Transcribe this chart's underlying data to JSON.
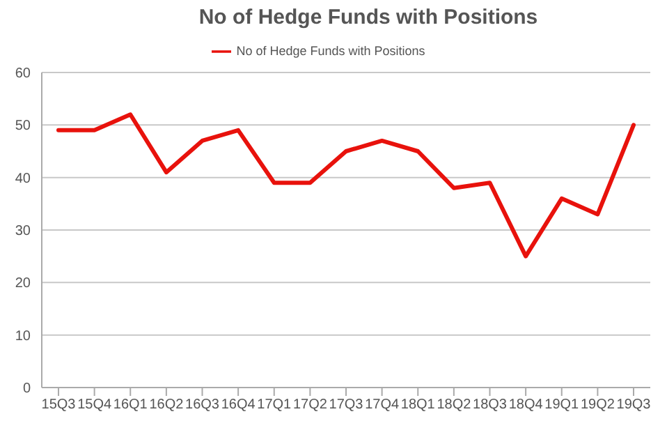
{
  "chart_data": {
    "type": "line",
    "title": "No of Hedge Funds with Positions",
    "categories": [
      "15Q3",
      "15Q4",
      "16Q1",
      "16Q2",
      "16Q3",
      "16Q4",
      "17Q1",
      "17Q2",
      "17Q3",
      "17Q4",
      "18Q1",
      "18Q2",
      "18Q3",
      "18Q4",
      "19Q1",
      "19Q2",
      "19Q3"
    ],
    "series": [
      {
        "name": "No of Hedge Funds with Positions",
        "color": "#e8120c",
        "values": [
          49,
          49,
          52,
          41,
          47,
          49,
          39,
          39,
          45,
          47,
          45,
          38,
          39,
          25,
          36,
          33,
          50
        ]
      }
    ],
    "ylim": [
      0,
      60
    ],
    "yticks": [
      0,
      10,
      20,
      30,
      40,
      50,
      60
    ],
    "grid": "y",
    "legend": "top",
    "marker": "none",
    "line_style": "solid"
  }
}
